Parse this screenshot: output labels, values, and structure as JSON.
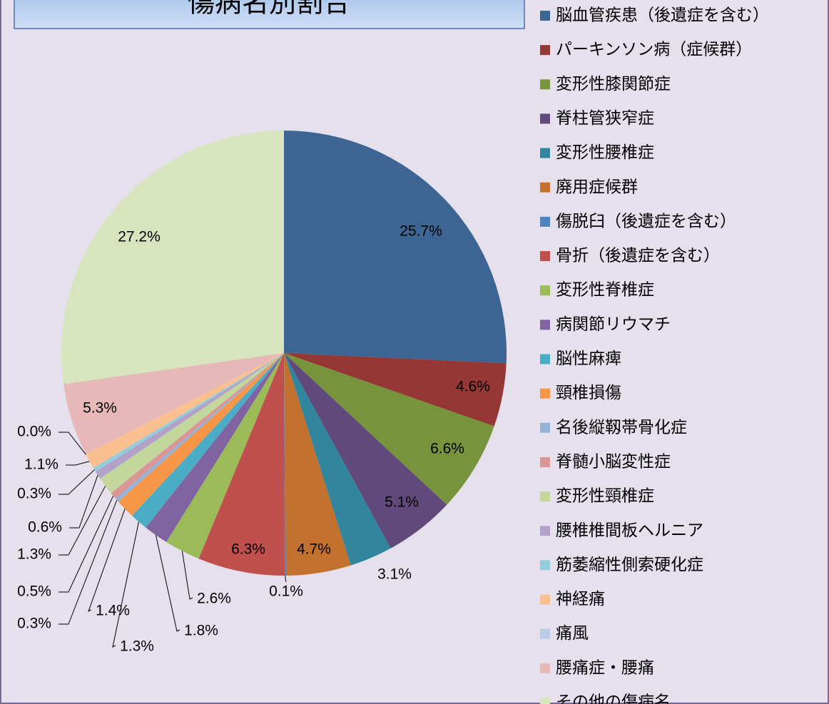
{
  "chart_data": {
    "type": "pie",
    "title": "傷病名別割合",
    "categories": [
      "脳血管疾患（後遺症を含む）",
      "パーキンソン病（症候群）",
      "変形性膝関節症",
      "脊柱管狭窄症",
      "変形性腰椎症",
      "廃用症候群",
      "傷脱臼（後遺症を含む）",
      "骨折（後遺症を含む）",
      "変形性脊椎症",
      "病関節リウマチ",
      "脳性麻痺",
      "頸椎損傷",
      "名後縦靱帯骨化症",
      "脊髄小脳変性症",
      "変形性頸椎症",
      "腰椎椎間板ヘルニア",
      "筋萎縮性側索硬化症",
      "神経痛",
      "痛風",
      "腰痛症・腰痛",
      "その他の傷病名"
    ],
    "values": [
      25.7,
      4.6,
      6.6,
      5.1,
      3.1,
      4.7,
      0.1,
      6.3,
      2.6,
      1.8,
      1.3,
      1.4,
      0.3,
      0.5,
      1.3,
      0.6,
      0.3,
      1.1,
      0.0,
      5.3,
      27.2
    ],
    "value_labels": [
      "25.7%",
      "4.6%",
      "6.6%",
      "5.1%",
      "3.1%",
      "4.7%",
      "0.1%",
      "6.3%",
      "2.6%",
      "1.8%",
      "1.3%",
      "1.4%",
      "0.3%",
      "0.5%",
      "1.3%",
      "0.6%",
      "0.3%",
      "1.1%",
      "0.0%",
      "5.3%",
      "27.2%"
    ],
    "colors": [
      "#3c6594",
      "#953735",
      "#77933c",
      "#604a7b",
      "#31859c",
      "#c3712f",
      "#4f81bd",
      "#c0504d",
      "#9bbb59",
      "#8064a2",
      "#4bacc6",
      "#f79646",
      "#95b3d7",
      "#d99694",
      "#c3d69b",
      "#b3a2c7",
      "#93cddd",
      "#fac090",
      "#b9cde5",
      "#e6b9b8",
      "#d7e4bd"
    ],
    "legend": "right"
  }
}
